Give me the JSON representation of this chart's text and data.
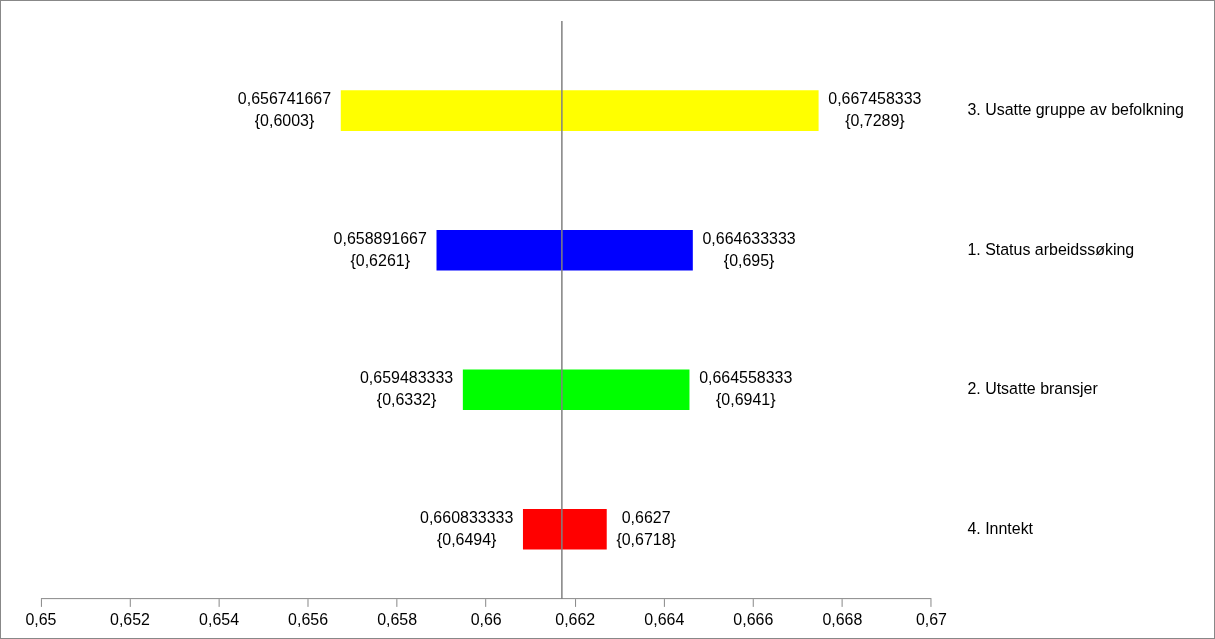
{
  "chart_data": {
    "type": "bar",
    "orientation": "horizontal",
    "categories": [
      "3. Usatte gruppe av befolkning",
      "1. Status arbeidssøking",
      "2. Utsatte bransjer",
      "4. Inntekt"
    ],
    "base": [
      0.656741667,
      0.658891667,
      0.659483333,
      0.660833333
    ],
    "values": [
      0.010716666,
      0.005741666,
      0.005075,
      0.001866667
    ],
    "colors": [
      "#ffff00",
      "#0000ff",
      "#00ff00",
      "#ff0000"
    ],
    "xlim": [
      0.65,
      0.67
    ],
    "xticks": [
      {
        "value": 0.65,
        "label": "0,65"
      },
      {
        "value": 0.652,
        "label": "0,652"
      },
      {
        "value": 0.654,
        "label": "0,654"
      },
      {
        "value": 0.656,
        "label": "0,656"
      },
      {
        "value": 0.658,
        "label": "0,658"
      },
      {
        "value": 0.66,
        "label": "0,66"
      },
      {
        "value": 0.662,
        "label": "0,662"
      },
      {
        "value": 0.664,
        "label": "0,664"
      },
      {
        "value": 0.666,
        "label": "0,666"
      },
      {
        "value": 0.668,
        "label": "0,668"
      },
      {
        "value": 0.67,
        "label": "0,67"
      }
    ],
    "grid": false,
    "legend": false,
    "ref_lines": [
      {
        "axis": "x",
        "value": 0.6617,
        "color": "#808080"
      }
    ],
    "annotations": [
      {
        "text": "0,656741667\n{0,6003}",
        "x": 0.656741667,
        "y": "3. Usatte gruppe av befolkning"
      },
      {
        "text": "0,667458333\n{0,7289}",
        "x": 0.667458333,
        "y": "3. Usatte gruppe av befolkning"
      },
      {
        "text": "0,658891667\n{0,6261}",
        "x": 0.658891667,
        "y": "1. Status arbeidssøking"
      },
      {
        "text": "0,664633333\n{0,695}",
        "x": 0.664633333,
        "y": "1. Status arbeidssøking"
      },
      {
        "text": "0,659483333\n{0,6332}",
        "x": 0.659483333,
        "y": "2. Utsatte bransjer"
      },
      {
        "text": "0,664558333\n{0,6941}",
        "x": 0.664558333,
        "y": "2. Utsatte bransjer"
      },
      {
        "text": "0,660833333\n{0,6494}",
        "x": 0.660833333,
        "y": "4. Inntekt"
      },
      {
        "text": "0,6627\n{0,6718}",
        "x": 0.6627,
        "y": "4. Inntekt"
      }
    ]
  }
}
